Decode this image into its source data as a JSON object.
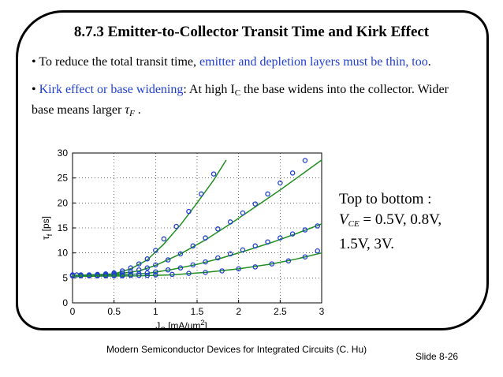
{
  "slide": {
    "title": "8.7.3  Emitter-to-Collector Transit Time and Kirk Effect",
    "bullet1": {
      "marker": "•",
      "text": " To reduce the total transit time, ",
      "highlight": "emitter and depletion layers must be thin, too",
      "end": "."
    },
    "bullet2": {
      "marker": "•",
      "highlight": " Kirk effect or base widening",
      "text_a": ": At high I",
      "sub": "C",
      "text_b": " the base widens into the collector. Wider base means larger ",
      "tau": "τ",
      "tau_sub": "F",
      "end": " ."
    },
    "note": {
      "line1": "Top to bottom :",
      "line2_var": "V",
      "line2_sub": "CE",
      "line2_rest": " = 0.5V, 0.8V,",
      "line3": "1.5V, 3V."
    },
    "footer": "Modern Semiconductor Devices for Integrated Circuits (C. Hu)",
    "slide_number": "Slide 8-26"
  },
  "chart_data": {
    "type": "scatter",
    "xlabel": "J",
    "xlabel_sub": "C",
    "xlabel_unit": " [mA/um",
    "xlabel_sup": "2",
    "xlabel_end": "]",
    "ylabel": "τ",
    "ylabel_sub": "f",
    "ylabel_unit": " [ps]",
    "xlim": [
      0,
      3
    ],
    "ylim": [
      0,
      30
    ],
    "x_ticks": [
      "0",
      "0.5",
      "1",
      "1.5",
      "2",
      "2.5",
      "3"
    ],
    "y_ticks": [
      "0",
      "5",
      "10",
      "15",
      "20",
      "25",
      "30"
    ],
    "grid": true,
    "marker_color": "#1f3fd1",
    "line_color": "#1f8f1f",
    "series": [
      {
        "points": [
          [
            0,
            5.6
          ],
          [
            0.05,
            5.6
          ],
          [
            0.1,
            5.6
          ],
          [
            0.2,
            5.6
          ],
          [
            0.3,
            5.7
          ],
          [
            0.4,
            5.8
          ],
          [
            0.5,
            6.0
          ],
          [
            0.6,
            6.4
          ],
          [
            0.7,
            7.0
          ],
          [
            0.8,
            7.8
          ],
          [
            0.9,
            8.8
          ],
          [
            1.0,
            10.5
          ],
          [
            1.1,
            12.8
          ],
          [
            1.25,
            15.3
          ],
          [
            1.4,
            18.3
          ],
          [
            1.55,
            21.8
          ],
          [
            1.7,
            25.8
          ]
        ],
        "fit": [
          [
            0,
            5.5
          ],
          [
            0.5,
            5.8
          ],
          [
            0.7,
            6.8
          ],
          [
            0.9,
            8.6
          ],
          [
            1.1,
            11.8
          ],
          [
            1.3,
            15.6
          ],
          [
            1.5,
            20.0
          ],
          [
            1.7,
            24.6
          ],
          [
            1.85,
            28.6
          ]
        ]
      },
      {
        "points": [
          [
            0,
            5.5
          ],
          [
            0.1,
            5.5
          ],
          [
            0.2,
            5.5
          ],
          [
            0.3,
            5.6
          ],
          [
            0.4,
            5.6
          ],
          [
            0.5,
            5.8
          ],
          [
            0.6,
            6.0
          ],
          [
            0.7,
            6.2
          ],
          [
            0.8,
            6.6
          ],
          [
            0.9,
            7.0
          ],
          [
            1.0,
            7.6
          ],
          [
            1.15,
            8.6
          ],
          [
            1.3,
            9.8
          ],
          [
            1.45,
            11.4
          ],
          [
            1.6,
            13.0
          ],
          [
            1.75,
            14.8
          ],
          [
            1.9,
            16.2
          ],
          [
            2.05,
            18.0
          ],
          [
            2.2,
            19.8
          ],
          [
            2.35,
            21.8
          ],
          [
            2.5,
            24.0
          ],
          [
            2.65,
            26.0
          ],
          [
            2.8,
            28.5
          ]
        ],
        "fit": [
          [
            0,
            5.5
          ],
          [
            0.5,
            5.7
          ],
          [
            0.8,
            6.4
          ],
          [
            1.0,
            7.5
          ],
          [
            1.3,
            9.8
          ],
          [
            1.6,
            12.6
          ],
          [
            1.9,
            15.8
          ],
          [
            2.2,
            19.2
          ],
          [
            2.5,
            22.6
          ],
          [
            2.8,
            26.2
          ],
          [
            3.0,
            28.6
          ]
        ]
      },
      {
        "points": [
          [
            0,
            5.5
          ],
          [
            0.1,
            5.5
          ],
          [
            0.2,
            5.5
          ],
          [
            0.3,
            5.5
          ],
          [
            0.4,
            5.5
          ],
          [
            0.5,
            5.6
          ],
          [
            0.6,
            5.6
          ],
          [
            0.7,
            5.7
          ],
          [
            0.8,
            5.8
          ],
          [
            0.9,
            6.0
          ],
          [
            1.0,
            6.2
          ],
          [
            1.15,
            6.6
          ],
          [
            1.3,
            7.0
          ],
          [
            1.45,
            7.6
          ],
          [
            1.6,
            8.2
          ],
          [
            1.75,
            9.0
          ],
          [
            1.9,
            9.8
          ],
          [
            2.05,
            10.6
          ],
          [
            2.2,
            11.4
          ],
          [
            2.35,
            12.2
          ],
          [
            2.5,
            13.0
          ],
          [
            2.65,
            13.8
          ],
          [
            2.8,
            14.6
          ],
          [
            2.95,
            15.4
          ]
        ],
        "fit": [
          [
            0,
            5.5
          ],
          [
            0.6,
            5.6
          ],
          [
            0.9,
            5.9
          ],
          [
            1.2,
            6.7
          ],
          [
            1.5,
            7.7
          ],
          [
            1.8,
            9.0
          ],
          [
            2.1,
            10.5
          ],
          [
            2.4,
            12.1
          ],
          [
            2.7,
            13.9
          ],
          [
            3.0,
            15.8
          ]
        ]
      },
      {
        "points": [
          [
            0,
            5.4
          ],
          [
            0.1,
            5.4
          ],
          [
            0.2,
            5.4
          ],
          [
            0.3,
            5.4
          ],
          [
            0.4,
            5.4
          ],
          [
            0.5,
            5.4
          ],
          [
            0.6,
            5.4
          ],
          [
            0.7,
            5.5
          ],
          [
            0.8,
            5.5
          ],
          [
            0.9,
            5.5
          ],
          [
            1.0,
            5.6
          ],
          [
            1.2,
            5.7
          ],
          [
            1.4,
            5.9
          ],
          [
            1.6,
            6.1
          ],
          [
            1.8,
            6.4
          ],
          [
            2.0,
            6.8
          ],
          [
            2.2,
            7.2
          ],
          [
            2.4,
            7.8
          ],
          [
            2.6,
            8.4
          ],
          [
            2.8,
            9.2
          ],
          [
            2.95,
            10.4
          ]
        ],
        "fit": [
          [
            0,
            5.3
          ],
          [
            0.8,
            5.4
          ],
          [
            1.2,
            5.6
          ],
          [
            1.6,
            6.1
          ],
          [
            2.0,
            6.8
          ],
          [
            2.4,
            7.8
          ],
          [
            2.7,
            8.8
          ],
          [
            3.0,
            10.0
          ]
        ]
      }
    ]
  }
}
